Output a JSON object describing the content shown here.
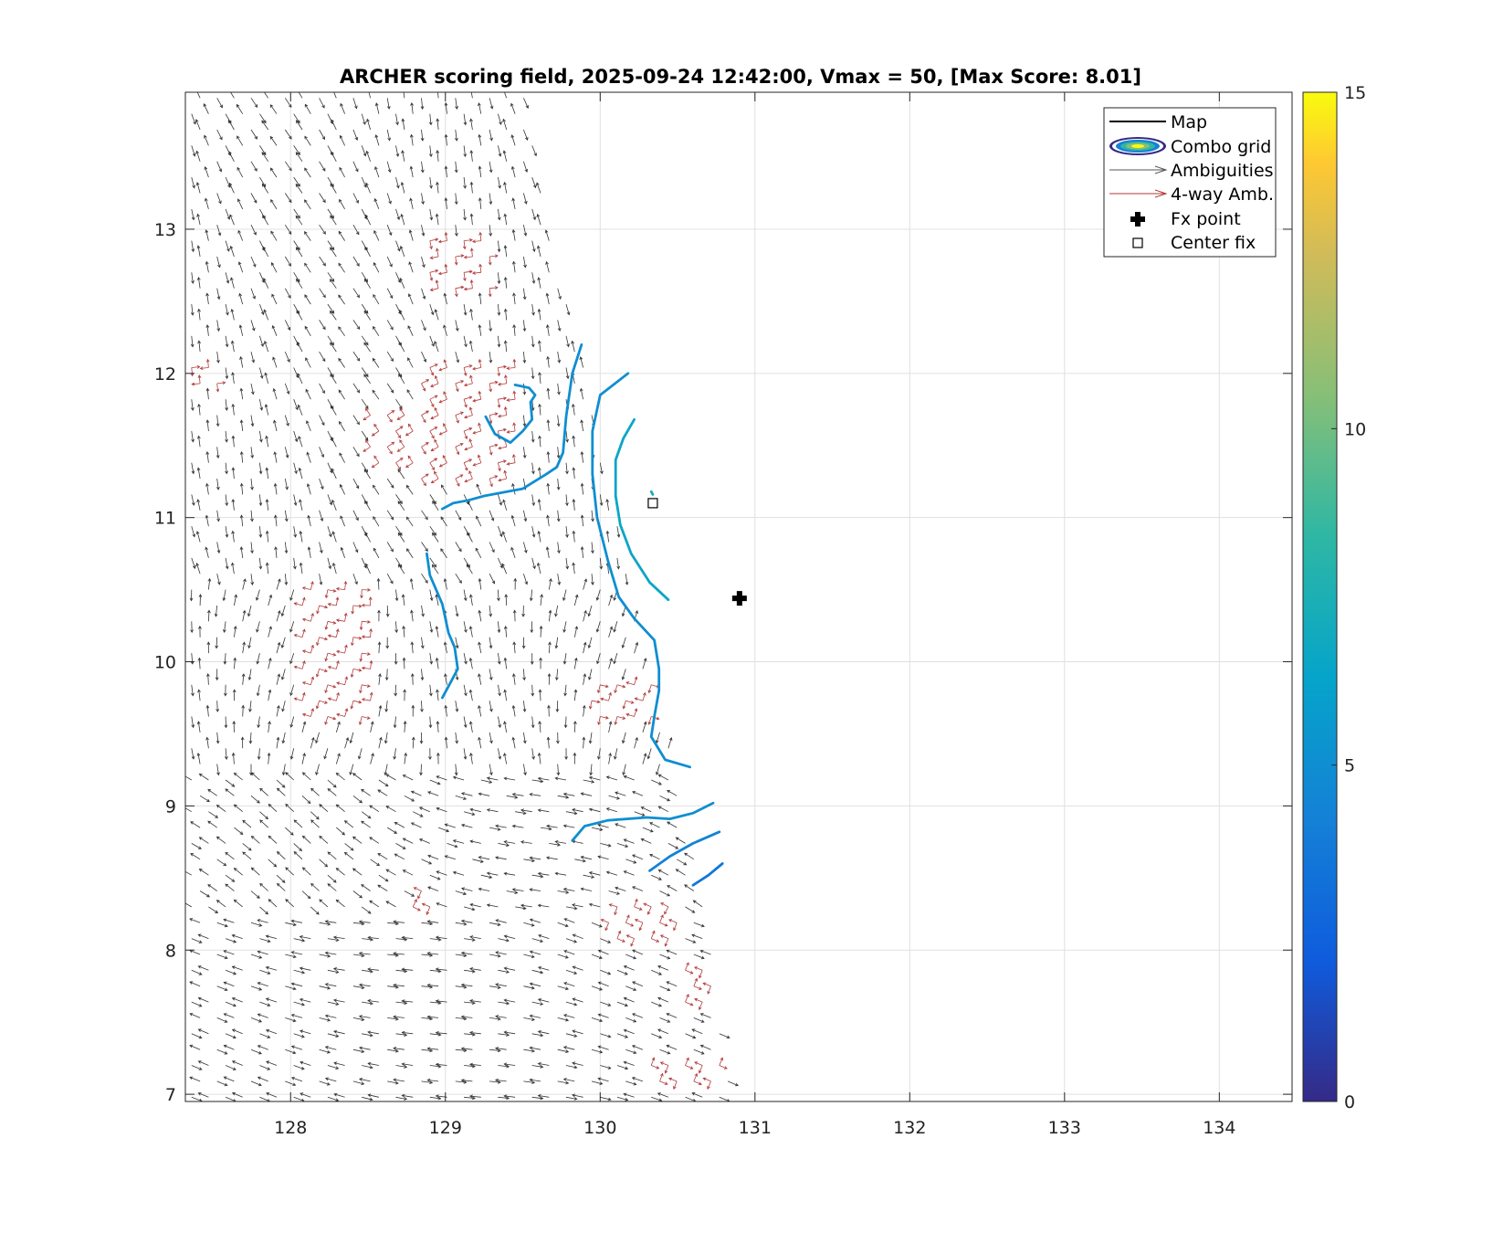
{
  "chart_data": {
    "type": "vector-field-contour",
    "title": "ARCHER scoring field, 2025-09-24 12:42:00, Vmax = 50, [Max Score: 8.01]",
    "xlabel": "",
    "ylabel": "",
    "xlim": [
      127.32,
      134.47
    ],
    "ylim": [
      6.95,
      13.95
    ],
    "xticks": [
      "128",
      "129",
      "130",
      "131",
      "132",
      "133",
      "134"
    ],
    "yticks": [
      "7",
      "8",
      "9",
      "10",
      "11",
      "12",
      "13"
    ],
    "grid": true,
    "colorbar": {
      "min": 0,
      "max": 15,
      "ticks": [
        "0",
        "5",
        "10",
        "15"
      ],
      "colormap": "parula"
    },
    "legend": {
      "location": "top-right",
      "entries": [
        "Map",
        "Combo grid",
        "Ambiguities",
        "4-way Amb.",
        "Fx point",
        "Center fix"
      ]
    },
    "markers": {
      "fx_point": {
        "lon": 130.9,
        "lat": 10.44
      },
      "center_fix": {
        "lon": 130.34,
        "lat": 11.1
      }
    },
    "swath": {
      "edge": [
        [
          129.5,
          13.95
        ],
        [
          129.7,
          12.9
        ],
        [
          129.95,
          11.9
        ],
        [
          130.1,
          11.0
        ],
        [
          130.25,
          10.2
        ],
        [
          130.45,
          9.4
        ],
        [
          130.65,
          8.5
        ],
        [
          130.85,
          7.0
        ]
      ]
    },
    "four_way_patches": [
      {
        "lon": 129.1,
        "lat": 12.75,
        "w": 0.45,
        "h": 0.45
      },
      {
        "lon": 129.15,
        "lat": 11.65,
        "w": 0.65,
        "h": 0.9
      },
      {
        "lon": 128.7,
        "lat": 11.55,
        "w": 0.45,
        "h": 0.45
      },
      {
        "lon": 128.3,
        "lat": 10.1,
        "w": 0.45,
        "h": 1.0
      },
      {
        "lon": 127.45,
        "lat": 11.95,
        "w": 0.2,
        "h": 0.2
      },
      {
        "lon": 130.15,
        "lat": 9.7,
        "w": 0.45,
        "h": 0.35
      },
      {
        "lon": 130.3,
        "lat": 8.2,
        "w": 0.5,
        "h": 0.4
      },
      {
        "lon": 130.65,
        "lat": 7.75,
        "w": 0.25,
        "h": 0.4
      },
      {
        "lon": 130.55,
        "lat": 7.1,
        "w": 0.5,
        "h": 0.22
      },
      {
        "lon": 128.85,
        "lat": 8.35,
        "w": 0.15,
        "h": 0.2
      }
    ],
    "contours": [
      {
        "level": 5.0,
        "points": [
          [
            129.88,
            12.2
          ],
          [
            129.82,
            12.0
          ],
          [
            129.78,
            11.7
          ],
          [
            129.76,
            11.45
          ],
          [
            129.72,
            11.35
          ],
          [
            129.65,
            11.3
          ],
          [
            129.5,
            11.2
          ],
          [
            129.4,
            11.18
          ],
          [
            129.25,
            11.15
          ],
          [
            129.15,
            11.12
          ],
          [
            129.05,
            11.1
          ],
          [
            128.98,
            11.06
          ]
        ]
      },
      {
        "level": 5.0,
        "points": [
          [
            129.26,
            11.7
          ],
          [
            129.32,
            11.58
          ],
          [
            129.42,
            11.52
          ],
          [
            129.5,
            11.6
          ],
          [
            129.56,
            11.68
          ],
          [
            129.55,
            11.8
          ],
          [
            129.58,
            11.85
          ],
          [
            129.54,
            11.9
          ],
          [
            129.45,
            11.92
          ]
        ]
      },
      {
        "level": 5.0,
        "points": [
          [
            128.88,
            10.75
          ],
          [
            128.9,
            10.6
          ],
          [
            128.98,
            10.4
          ],
          [
            129.02,
            10.2
          ],
          [
            129.06,
            10.1
          ],
          [
            129.08,
            9.95
          ],
          [
            129.03,
            9.85
          ],
          [
            128.98,
            9.75
          ]
        ]
      },
      {
        "level": 5.0,
        "points": [
          [
            130.18,
            12.0
          ],
          [
            130.0,
            11.85
          ],
          [
            129.95,
            11.6
          ],
          [
            129.95,
            11.3
          ],
          [
            129.98,
            11.0
          ],
          [
            130.05,
            10.7
          ],
          [
            130.12,
            10.45
          ],
          [
            130.22,
            10.3
          ],
          [
            130.35,
            10.15
          ],
          [
            130.38,
            9.95
          ],
          [
            130.38,
            9.8
          ],
          [
            130.35,
            9.62
          ],
          [
            130.33,
            9.48
          ],
          [
            130.42,
            9.32
          ],
          [
            130.58,
            9.27
          ]
        ]
      },
      {
        "level": 5.0,
        "points": [
          [
            129.82,
            8.76
          ],
          [
            129.9,
            8.86
          ],
          [
            130.05,
            8.9
          ],
          [
            130.3,
            8.92
          ],
          [
            130.45,
            8.91
          ],
          [
            130.6,
            8.95
          ],
          [
            130.73,
            9.02
          ]
        ]
      },
      {
        "level": 4.3,
        "points": [
          [
            130.32,
            8.55
          ],
          [
            130.45,
            8.65
          ],
          [
            130.6,
            8.74
          ],
          [
            130.77,
            8.82
          ]
        ]
      },
      {
        "level": 3.6,
        "points": [
          [
            130.6,
            8.45
          ],
          [
            130.7,
            8.52
          ],
          [
            130.79,
            8.6
          ]
        ]
      },
      {
        "level": 6.5,
        "points": [
          [
            130.22,
            11.68
          ],
          [
            130.15,
            11.55
          ],
          [
            130.1,
            11.4
          ],
          [
            130.1,
            11.15
          ],
          [
            130.13,
            10.95
          ],
          [
            130.2,
            10.75
          ],
          [
            130.32,
            10.55
          ],
          [
            130.44,
            10.43
          ]
        ]
      },
      {
        "level": 7.2,
        "points": [
          [
            130.33,
            11.18
          ],
          [
            130.34,
            11.16
          ]
        ]
      }
    ]
  }
}
